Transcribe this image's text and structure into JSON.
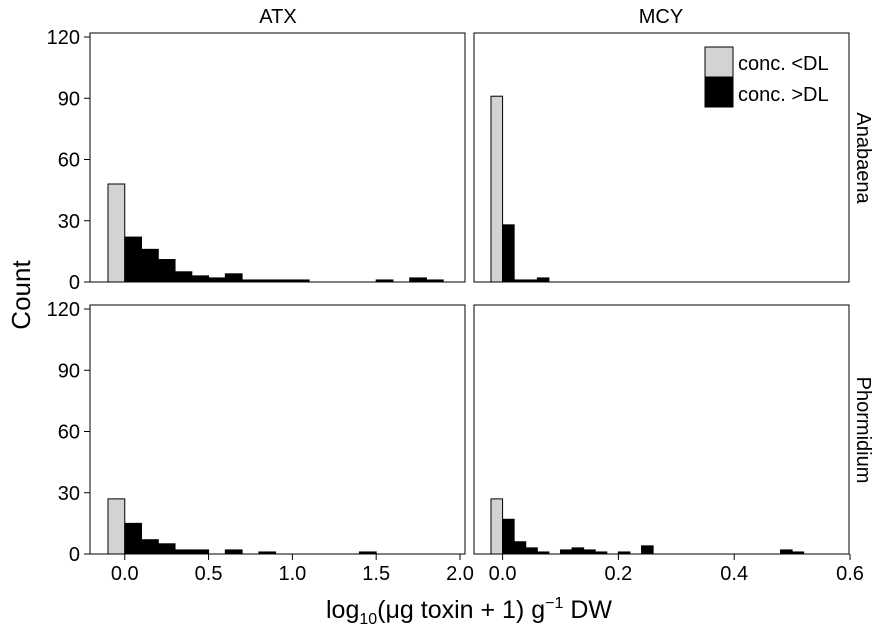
{
  "chart_data": {
    "type": "bar",
    "ylabel": "Count",
    "xlabel_parts": {
      "prefix": "log",
      "sub": "10",
      "middle": "(μg toxin + 1) g",
      "sup": "−1",
      "suffix": " DW"
    },
    "column_strips": [
      "ATX",
      "MCY"
    ],
    "row_strips": [
      "Anabaena",
      "Phormidium"
    ],
    "y_ticks": [
      "0",
      "30",
      "60",
      "90",
      "120"
    ],
    "ylim": [
      0,
      120
    ],
    "columns": [
      {
        "x_ticks": [
          {
            "v": 0,
            "label": "0.0"
          },
          {
            "v": 0.5,
            "label": "0.5"
          },
          {
            "v": 1,
            "label": "1.0"
          },
          {
            "v": 1.5,
            "label": "1.5"
          },
          {
            "v": 2,
            "label": "2.0"
          }
        ],
        "xlim": [
          -0.1,
          2.0
        ]
      },
      {
        "x_ticks": [
          {
            "v": 0,
            "label": "0.0"
          },
          {
            "v": 0.2,
            "label": "0.2"
          },
          {
            "v": 0.4,
            "label": "0.4"
          },
          {
            "v": 0.6,
            "label": "0.6"
          }
        ],
        "xlim": [
          -0.02,
          0.6
        ]
      }
    ],
    "legend": {
      "placement": "top-right",
      "items": [
        {
          "label": "conc. <DL",
          "color": "#d3d3d3"
        },
        {
          "label": "conc. >DL",
          "color": "#000000"
        }
      ]
    },
    "panels": [
      {
        "column": "ATX",
        "row": "Anabaena",
        "below_dl": {
          "x": [
            -0.1,
            0.0
          ],
          "count": 48
        },
        "above_dl": {
          "bin_width": 0.1,
          "bin_starts": [
            0.0,
            0.1,
            0.2,
            0.3,
            0.4,
            0.5,
            0.6,
            0.7,
            0.8,
            0.9,
            1.0,
            1.5,
            1.7,
            1.8
          ],
          "counts": [
            22,
            16,
            11,
            5,
            3,
            2,
            4,
            1,
            1,
            1,
            1,
            1,
            2,
            1
          ]
        }
      },
      {
        "column": "MCY",
        "row": "Anabaena",
        "below_dl": {
          "x": [
            -0.02,
            0.0
          ],
          "count": 91
        },
        "above_dl": {
          "bin_width": 0.02,
          "bin_starts": [
            0.0,
            0.02,
            0.04,
            0.06
          ],
          "counts": [
            28,
            1,
            1,
            2
          ]
        }
      },
      {
        "column": "ATX",
        "row": "Phormidium",
        "below_dl": {
          "x": [
            -0.1,
            0.0
          ],
          "count": 27
        },
        "above_dl": {
          "bin_width": 0.1,
          "bin_starts": [
            0.0,
            0.1,
            0.2,
            0.3,
            0.4,
            0.6,
            0.8,
            1.4
          ],
          "counts": [
            15,
            7,
            5,
            2,
            2,
            2,
            1,
            1
          ]
        }
      },
      {
        "column": "MCY",
        "row": "Phormidium",
        "below_dl": {
          "x": [
            -0.02,
            0.0
          ],
          "count": 27
        },
        "above_dl": {
          "bin_width": 0.02,
          "bin_starts": [
            0.0,
            0.02,
            0.04,
            0.06,
            0.1,
            0.12,
            0.14,
            0.16,
            0.2,
            0.24,
            0.48,
            0.5
          ],
          "counts": [
            17,
            6,
            3,
            1,
            2,
            3,
            2,
            1,
            1,
            4,
            2,
            1
          ]
        }
      }
    ]
  }
}
